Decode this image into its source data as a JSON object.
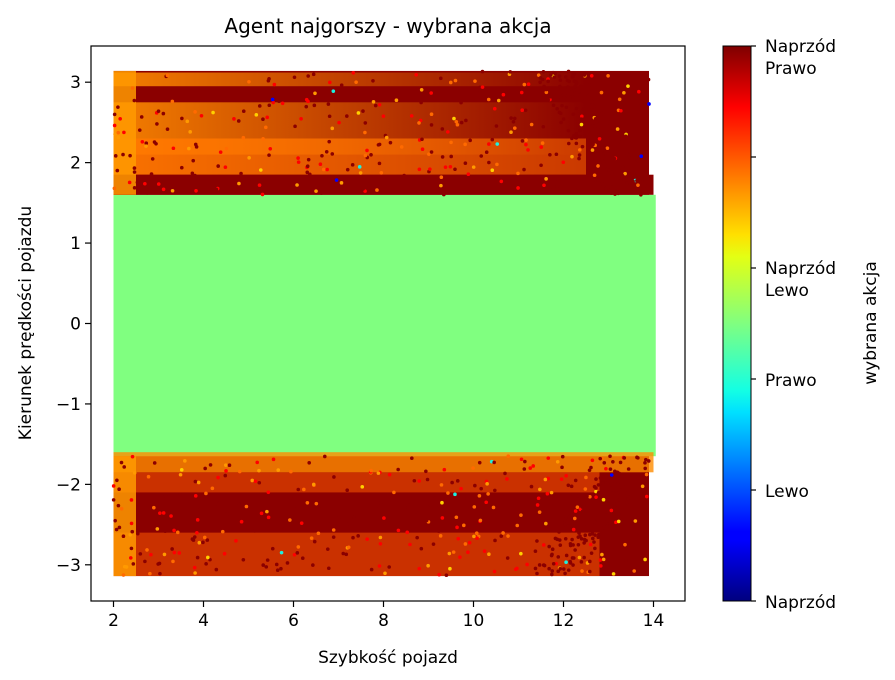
{
  "chart_data": {
    "type": "heatmap",
    "subtype": "hexbin",
    "title": "Agent najgorszy - wybrana akcja",
    "xlabel": "Szybkość pojazd",
    "ylabel": "Kierunek prędkości pojazdu",
    "xlim": [
      1.5,
      14.7
    ],
    "ylim": [
      -3.45,
      3.45
    ],
    "x_ticks": [
      2,
      4,
      6,
      8,
      10,
      12,
      14
    ],
    "x_tick_labels": [
      "2",
      "4",
      "6",
      "8",
      "10",
      "12",
      "14"
    ],
    "y_ticks": [
      3,
      2,
      1,
      0,
      -1,
      -2,
      -3
    ],
    "y_tick_labels": [
      "3",
      "2",
      "1",
      "0",
      "−1",
      "−2",
      "−3"
    ],
    "data_x_range": [
      2.0,
      14.1
    ],
    "data_y_range": [
      -3.14,
      3.14
    ],
    "colormap": "jet",
    "colorbar": {
      "label": "wybrana akcja",
      "range": [
        0,
        5
      ],
      "ticks": [
        0,
        1,
        2,
        3,
        4,
        5
      ],
      "tick_labels": [
        "Naprzód",
        "Lewo",
        "Prawo",
        "Naprzód\nLewo",
        "Naprzód\nPrawo",
        "Naprzód\nPrawo"
      ]
    },
    "regions": [
      {
        "y_from": 1.6,
        "y_to": 3.14,
        "dominant_action": "Naprzód Prawo",
        "secondary_action": "Naprzód Lewo"
      },
      {
        "y_from": -1.6,
        "y_to": 1.6,
        "dominant_action": "Prawo"
      },
      {
        "y_from": -3.14,
        "y_to": -1.6,
        "dominant_action": "Naprzód Prawo",
        "secondary_action": "Naprzód Lewo"
      }
    ],
    "grid": false
  }
}
